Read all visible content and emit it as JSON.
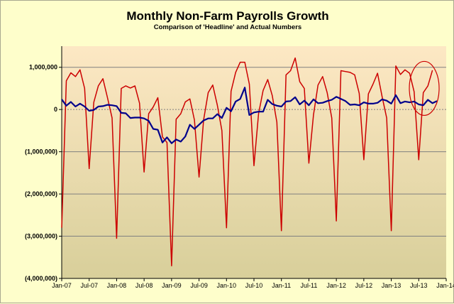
{
  "chart_data": {
    "type": "line",
    "title": "Monthly Non-Farm Payrolls Growth",
    "subtitle": "Comparison of 'Headline' and Actual Numbers",
    "xlabel": "",
    "ylabel": "",
    "ylim": [
      -4000000,
      1500000
    ],
    "y_ticks": [
      {
        "value": 1000000,
        "label": "1,000,000"
      },
      {
        "value": 0,
        "label": "0"
      },
      {
        "value": -1000000,
        "label": "(1,000,000)"
      },
      {
        "value": -2000000,
        "label": "(2,000,000)"
      },
      {
        "value": -3000000,
        "label": "(3,000,000)"
      },
      {
        "value": -4000000,
        "label": "(4,000,000)"
      }
    ],
    "x_ticks": [
      {
        "index": 0,
        "label": "Jan-07"
      },
      {
        "index": 6,
        "label": "Jul-07"
      },
      {
        "index": 12,
        "label": "Jan-08"
      },
      {
        "index": 18,
        "label": "Jul-08"
      },
      {
        "index": 24,
        "label": "Jan-09"
      },
      {
        "index": 30,
        "label": "Jul-09"
      },
      {
        "index": 36,
        "label": "Jan-10"
      },
      {
        "index": 42,
        "label": "Jul-10"
      },
      {
        "index": 48,
        "label": "Jan-11"
      },
      {
        "index": 54,
        "label": "Jul-11"
      },
      {
        "index": 60,
        "label": "Jan-12"
      },
      {
        "index": 66,
        "label": "Jul-12"
      },
      {
        "index": 72,
        "label": "Jan-13"
      },
      {
        "index": 78,
        "label": "Jul-13"
      },
      {
        "index": 84,
        "label": "Jan-14"
      }
    ],
    "x_count": 85,
    "grid": true,
    "grid_color": "#808080",
    "zero_line_style": "dashed",
    "background_gradient": [
      "#fde8c4",
      "#d8cf9a"
    ],
    "series": [
      {
        "name": "",
        "color": "#cc0000",
        "values": [
          -2800000,
          680000,
          870000,
          780000,
          940000,
          500000,
          -1400000,
          170000,
          560000,
          730000,
          280000,
          -200000,
          -3050000,
          500000,
          560000,
          510000,
          560000,
          150000,
          -1480000,
          -100000,
          60000,
          280000,
          -650000,
          -780000,
          -3700000,
          -230000,
          -100000,
          180000,
          250000,
          -250000,
          -1600000,
          -250000,
          400000,
          580000,
          100000,
          -500000,
          -2800000,
          430000,
          880000,
          1120000,
          1120000,
          600000,
          -1330000,
          -100000,
          450000,
          710000,
          330000,
          -300000,
          -2870000,
          820000,
          920000,
          1220000,
          660000,
          500000,
          -1270000,
          -130000,
          580000,
          780000,
          400000,
          -200000,
          -2640000,
          920000,
          900000,
          880000,
          820000,
          380000,
          -1190000,
          370000,
          600000,
          860000,
          300000,
          -200000,
          -2870000,
          1030000,
          830000,
          940000,
          860000,
          420000,
          -1190000,
          400000,
          560000,
          930000
        ]
      },
      {
        "name": "",
        "color": "#00008b",
        "values": [
          240000,
          90000,
          180000,
          70000,
          140000,
          70000,
          -30000,
          -10000,
          70000,
          80000,
          110000,
          100000,
          80000,
          -80000,
          -90000,
          -200000,
          -190000,
          -190000,
          -210000,
          -270000,
          -460000,
          -480000,
          -780000,
          -660000,
          -800000,
          -710000,
          -760000,
          -640000,
          -360000,
          -460000,
          -360000,
          -260000,
          -210000,
          -210000,
          -110000,
          -200000,
          40000,
          -40000,
          190000,
          250000,
          520000,
          -130000,
          -70000,
          -50000,
          -50000,
          230000,
          130000,
          90000,
          70000,
          190000,
          200000,
          290000,
          120000,
          210000,
          100000,
          240000,
          150000,
          160000,
          200000,
          230000,
          300000,
          250000,
          200000,
          110000,
          120000,
          100000,
          170000,
          140000,
          140000,
          160000,
          240000,
          210000,
          140000,
          340000,
          150000,
          190000,
          170000,
          190000,
          120000,
          100000,
          230000,
          150000,
          200000
        ]
      }
    ],
    "annotations": [
      {
        "type": "ellipse",
        "color": "#cc0000",
        "center_index": 79.2,
        "center_value": 500000,
        "note": ""
      }
    ]
  }
}
